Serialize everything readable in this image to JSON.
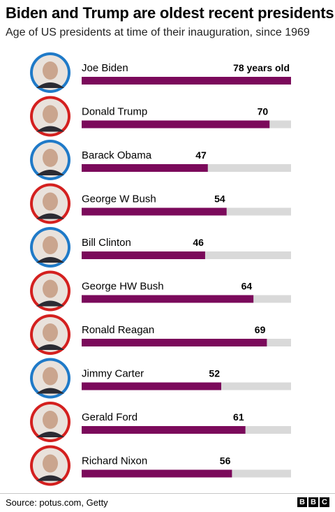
{
  "header": {
    "title": "Biden and Trump are oldest recent presidents",
    "subtitle": "Age of US presidents at time of their inauguration, since 1969"
  },
  "footer": {
    "source": "Source: potus.com, Getty",
    "logo_letters": [
      "B",
      "B",
      "C"
    ]
  },
  "colors": {
    "bar": "#7b0a5b",
    "track": "#d9d9d9",
    "ring_blue": "#1f7ac8",
    "ring_red": "#d4201f"
  },
  "chart_data": {
    "type": "bar",
    "orientation": "horizontal",
    "title": "Biden and Trump are oldest recent presidents",
    "subtitle": "Age of US presidents at time of their inauguration, since 1969",
    "categories": [
      "Joe Biden",
      "Donald Trump",
      "Barack Obama",
      "George W Bush",
      "Bill Clinton",
      "George HW Bush",
      "Ronald Reagan",
      "Jimmy Carter",
      "Gerald Ford",
      "Richard Nixon"
    ],
    "values": [
      78,
      70,
      47,
      54,
      46,
      64,
      69,
      52,
      61,
      56
    ],
    "value_labels": [
      "78 years old",
      "70",
      "47",
      "54",
      "46",
      "64",
      "69",
      "52",
      "61",
      "56"
    ],
    "party_rings": [
      "blue",
      "red",
      "blue",
      "red",
      "blue",
      "red",
      "red",
      "blue",
      "red",
      "red"
    ],
    "xlim": [
      0,
      78
    ],
    "grid": false,
    "legend": "none"
  }
}
